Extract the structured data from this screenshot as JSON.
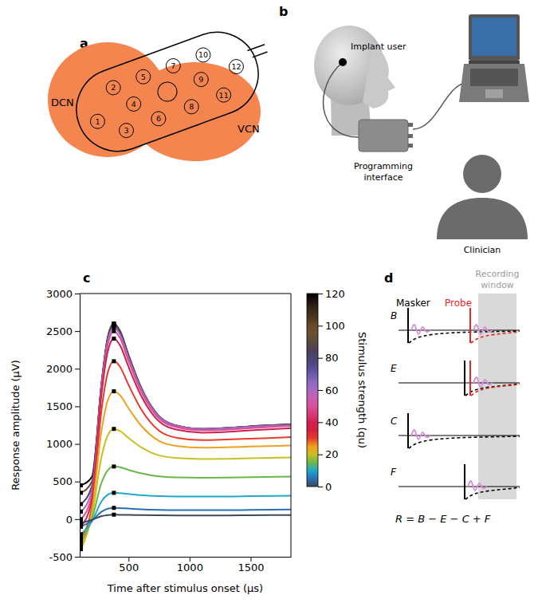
{
  "panel_a": {
    "letter": "a",
    "regions": [
      "DCN",
      "VCN"
    ],
    "electrodes": [
      "1",
      "2",
      "3",
      "4",
      "5",
      "6",
      "7",
      "8",
      "9",
      "10",
      "11",
      "12"
    ]
  },
  "panel_b": {
    "letter": "b",
    "implant_user": "Implant user",
    "programming_interface": [
      "Programming",
      "interface"
    ],
    "clinician": "Clinician"
  },
  "chart_data": {
    "letter": "c",
    "type": "line",
    "x_label": "Time after stimulus onset (µs)",
    "y_label": "Response amplitude (µV)",
    "x": [
      110,
      200,
      280,
      330,
      380,
      430,
      500,
      600,
      750,
      900,
      1100,
      1300,
      1500,
      1830
    ],
    "xlim": [
      100,
      1830
    ],
    "xticks": [
      500,
      1000,
      1500
    ],
    "ylim": [
      -500,
      3000
    ],
    "yticks": [
      -500,
      0,
      500,
      1000,
      1500,
      2000,
      2500,
      3000
    ],
    "series": [
      {
        "strength": 0,
        "values": [
          -50,
          -10,
          40,
          55,
          60,
          58,
          57,
          54,
          51,
          50,
          50,
          50,
          52,
          55
        ]
      },
      {
        "strength": 5,
        "values": [
          -100,
          -20,
          100,
          140,
          150,
          148,
          141,
          132,
          124,
          121,
          120,
          120,
          123,
          128
        ]
      },
      {
        "strength": 10,
        "values": [
          -200,
          -30,
          240,
          325,
          350,
          346,
          335,
          320,
          306,
          301,
          300,
          300,
          305,
          312
        ]
      },
      {
        "strength": 15,
        "values": [
          -300,
          0,
          490,
          650,
          700,
          690,
          655,
          610,
          568,
          555,
          550,
          552,
          558,
          565
        ]
      },
      {
        "strength": 20,
        "values": [
          -400,
          40,
          840,
          1115,
          1200,
          1172,
          1080,
          960,
          848,
          812,
          800,
          802,
          810,
          820
        ]
      },
      {
        "strength": 25,
        "values": [
          -350,
          100,
          1190,
          1580,
          1700,
          1648,
          1475,
          1250,
          1040,
          972,
          950,
          955,
          965,
          980
        ]
      },
      {
        "strength": 30,
        "values": [
          -250,
          170,
          1470,
          1950,
          2100,
          2027,
          1785,
          1470,
          1176,
          1080,
          1050,
          1058,
          1070,
          1090
        ]
      },
      {
        "strength": 40,
        "values": [
          -100,
          260,
          1680,
          2230,
          2400,
          2312,
          2025,
          1650,
          1300,
          1188,
          1150,
          1160,
          1180,
          1210
        ]
      },
      {
        "strength": 50,
        "values": [
          0,
          320,
          1750,
          2320,
          2500,
          2408,
          2104,
          1708,
          1338,
          1220,
          1180,
          1190,
          1210,
          1240
        ]
      },
      {
        "strength": 60,
        "values": [
          100,
          380,
          1785,
          2370,
          2550,
          2455,
          2145,
          1740,
          1362,
          1240,
          1200,
          1210,
          1230,
          1250
        ]
      },
      {
        "strength": 80,
        "values": [
          200,
          440,
          1806,
          2400,
          2580,
          2483,
          2166,
          1752,
          1366,
          1241,
          1200,
          1212,
          1232,
          1255
        ]
      },
      {
        "strength": 100,
        "values": [
          350,
          500,
          1820,
          2418,
          2600,
          2502,
          2180,
          1760,
          1368,
          1242,
          1200,
          1212,
          1235,
          1258
        ]
      },
      {
        "strength": 120,
        "values": [
          450,
          560,
          1820,
          2418,
          2600,
          2502,
          2180,
          1760,
          1368,
          1242,
          1200,
          1212,
          1235,
          1260
        ]
      },
      {
        "type": "scatter",
        "marker": "square",
        "color": "#000000",
        "x": [
          380,
          380,
          380,
          380,
          380,
          380,
          380,
          380,
          380,
          380,
          380,
          380,
          380
        ],
        "values": [
          60,
          150,
          350,
          700,
          1200,
          1700,
          2100,
          2400,
          2500,
          2550,
          2580,
          2600,
          2600
        ]
      },
      {
        "type": "scatter",
        "marker": "square",
        "color": "#000000",
        "x": [
          110,
          110,
          110,
          110,
          110,
          110,
          110,
          110,
          110,
          110,
          110,
          110,
          110
        ],
        "values": [
          -50,
          -100,
          -200,
          -300,
          -400,
          -350,
          -250,
          -100,
          0,
          100,
          200,
          350,
          450
        ]
      }
    ],
    "colorbar": {
      "label": "Stimulus strength (qu)",
      "lim": [
        0,
        120
      ],
      "ticks": [
        0,
        20,
        40,
        60,
        80,
        100,
        120
      ],
      "colors": [
        "#3a4a5a",
        "#2a6fb5",
        "#1fa8c8",
        "#6ab84a",
        "#c8c020",
        "#f0a020",
        "#e83a2a",
        "#d81e40",
        "#d02050",
        "#d83a78",
        "#d8509a",
        "#c860b0",
        "#a868c0",
        "#8a6ac0",
        "#6a5aa8",
        "#554a8c",
        "#4a4470",
        "#504058",
        "#5a4a40",
        "#6a5030",
        "#6a4a28",
        "#503820",
        "#382818",
        "#201510",
        "#000000"
      ]
    }
  },
  "panel_d": {
    "letter": "d",
    "masker": "Masker",
    "probe": "Probe",
    "window": [
      "Recording",
      "window"
    ],
    "rows": [
      "B",
      "E",
      "C",
      "F"
    ],
    "formula": "R = B − E − C + F"
  }
}
